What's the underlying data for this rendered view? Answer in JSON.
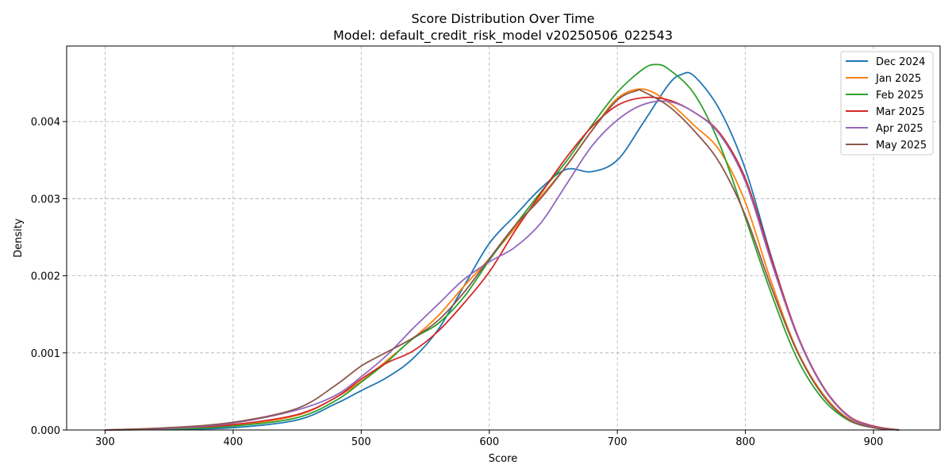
{
  "chart_data": {
    "type": "line",
    "title": "Score Distribution Over Time",
    "subtitle": "Model: default_credit_risk_model v20250506_022543",
    "xlabel": "Score",
    "ylabel": "Density",
    "xlim": [
      270,
      952
    ],
    "ylim": [
      0,
      0.00498
    ],
    "x_ticks": [
      300,
      400,
      500,
      600,
      700,
      800,
      900
    ],
    "y_ticks": [
      0.0,
      0.001,
      0.002,
      0.003,
      0.004
    ],
    "y_tick_labels": [
      "0.000",
      "0.001",
      "0.002",
      "0.003",
      "0.004"
    ],
    "grid": true,
    "legend_position": "top-right",
    "series": [
      {
        "name": "Dec 2024",
        "color": "#1f77b4",
        "points": [
          [
            300,
            0
          ],
          [
            350,
            1e-05
          ],
          [
            400,
            3e-05
          ],
          [
            450,
            0.00013
          ],
          [
            480,
            0.00034
          ],
          [
            500,
            0.00051
          ],
          [
            520,
            0.00068
          ],
          [
            540,
            0.00092
          ],
          [
            560,
            0.0013
          ],
          [
            580,
            0.00186
          ],
          [
            600,
            0.00242
          ],
          [
            620,
            0.00278
          ],
          [
            640,
            0.00313
          ],
          [
            660,
            0.00338
          ],
          [
            680,
            0.00335
          ],
          [
            700,
            0.0035
          ],
          [
            720,
            0.00398
          ],
          [
            740,
            0.00448
          ],
          [
            750,
            0.00461
          ],
          [
            760,
            0.00459
          ],
          [
            780,
            0.00415
          ],
          [
            800,
            0.00338
          ],
          [
            820,
            0.00226
          ],
          [
            840,
            0.00125
          ],
          [
            860,
            0.00058
          ],
          [
            880,
            0.00018
          ],
          [
            900,
            5e-05
          ],
          [
            920,
            0
          ]
        ]
      },
      {
        "name": "Jan 2025",
        "color": "#ff7f0e",
        "points": [
          [
            300,
            0
          ],
          [
            350,
            2e-05
          ],
          [
            400,
            6e-05
          ],
          [
            450,
            0.00019
          ],
          [
            480,
            0.00042
          ],
          [
            500,
            0.00063
          ],
          [
            520,
            0.0009
          ],
          [
            540,
            0.00118
          ],
          [
            560,
            0.00148
          ],
          [
            580,
            0.00186
          ],
          [
            600,
            0.00222
          ],
          [
            620,
            0.00262
          ],
          [
            640,
            0.00302
          ],
          [
            660,
            0.00342
          ],
          [
            680,
            0.00388
          ],
          [
            700,
            0.0043
          ],
          [
            720,
            0.00442
          ],
          [
            740,
            0.00425
          ],
          [
            760,
            0.00395
          ],
          [
            780,
            0.00362
          ],
          [
            800,
            0.00295
          ],
          [
            820,
            0.00193
          ],
          [
            840,
            0.00105
          ],
          [
            860,
            0.00048
          ],
          [
            880,
            0.00015
          ],
          [
            900,
            4e-05
          ],
          [
            920,
            0
          ]
        ]
      },
      {
        "name": "Feb 2025",
        "color": "#2ca02c",
        "points": [
          [
            300,
            0
          ],
          [
            350,
            1e-05
          ],
          [
            400,
            5e-05
          ],
          [
            450,
            0.00016
          ],
          [
            480,
            0.00038
          ],
          [
            500,
            0.00062
          ],
          [
            520,
            0.00088
          ],
          [
            540,
            0.00118
          ],
          [
            560,
            0.00138
          ],
          [
            580,
            0.00172
          ],
          [
            600,
            0.0022
          ],
          [
            620,
            0.00265
          ],
          [
            640,
            0.00308
          ],
          [
            660,
            0.00348
          ],
          [
            680,
            0.00395
          ],
          [
            700,
            0.00438
          ],
          [
            720,
            0.00468
          ],
          [
            730,
            0.00474
          ],
          [
            740,
            0.00468
          ],
          [
            760,
            0.00436
          ],
          [
            780,
            0.0037
          ],
          [
            800,
            0.00275
          ],
          [
            820,
            0.00178
          ],
          [
            840,
            0.00094
          ],
          [
            860,
            0.00041
          ],
          [
            880,
            0.00013
          ],
          [
            900,
            3e-05
          ],
          [
            920,
            0
          ]
        ]
      },
      {
        "name": "Mar 2025",
        "color": "#d62728",
        "points": [
          [
            300,
            0
          ],
          [
            350,
            2e-05
          ],
          [
            400,
            7e-05
          ],
          [
            450,
            0.0002
          ],
          [
            480,
            0.00042
          ],
          [
            500,
            0.00066
          ],
          [
            520,
            0.00087
          ],
          [
            540,
            0.00102
          ],
          [
            560,
            0.00128
          ],
          [
            580,
            0.00164
          ],
          [
            600,
            0.00205
          ],
          [
            620,
            0.00258
          ],
          [
            640,
            0.00306
          ],
          [
            660,
            0.00353
          ],
          [
            680,
            0.00393
          ],
          [
            700,
            0.00421
          ],
          [
            720,
            0.00431
          ],
          [
            740,
            0.00428
          ],
          [
            760,
            0.00412
          ],
          [
            780,
            0.00385
          ],
          [
            800,
            0.00326
          ],
          [
            820,
            0.00224
          ],
          [
            840,
            0.00126
          ],
          [
            860,
            0.00058
          ],
          [
            880,
            0.00019
          ],
          [
            900,
            5e-05
          ],
          [
            920,
            0
          ]
        ]
      },
      {
        "name": "Apr 2025",
        "color": "#9467bd",
        "points": [
          [
            300,
            0
          ],
          [
            350,
            2e-05
          ],
          [
            400,
            9e-05
          ],
          [
            450,
            0.00026
          ],
          [
            480,
            0.00045
          ],
          [
            500,
            0.00069
          ],
          [
            520,
            0.00097
          ],
          [
            540,
            0.00131
          ],
          [
            560,
            0.00163
          ],
          [
            580,
            0.00195
          ],
          [
            600,
            0.00218
          ],
          [
            620,
            0.00237
          ],
          [
            640,
            0.00268
          ],
          [
            660,
            0.00318
          ],
          [
            680,
            0.00368
          ],
          [
            700,
            0.00402
          ],
          [
            720,
            0.00422
          ],
          [
            740,
            0.00426
          ],
          [
            760,
            0.00412
          ],
          [
            780,
            0.00383
          ],
          [
            800,
            0.00322
          ],
          [
            820,
            0.00219
          ],
          [
            840,
            0.00124
          ],
          [
            860,
            0.00057
          ],
          [
            880,
            0.00018
          ],
          [
            900,
            4e-05
          ],
          [
            920,
            0
          ]
        ]
      },
      {
        "name": "May 2025",
        "color": "#8c564b",
        "points": [
          [
            300,
            0
          ],
          [
            350,
            3e-05
          ],
          [
            400,
            0.0001
          ],
          [
            450,
            0.00028
          ],
          [
            480,
            0.00058
          ],
          [
            500,
            0.00083
          ],
          [
            520,
            0.00101
          ],
          [
            540,
            0.00119
          ],
          [
            560,
            0.00142
          ],
          [
            580,
            0.00178
          ],
          [
            600,
            0.00222
          ],
          [
            620,
            0.00265
          ],
          [
            640,
            0.003
          ],
          [
            660,
            0.00342
          ],
          [
            680,
            0.00388
          ],
          [
            700,
            0.00428
          ],
          [
            715,
            0.0044
          ],
          [
            720,
            0.00439
          ],
          [
            740,
            0.0042
          ],
          [
            760,
            0.00388
          ],
          [
            780,
            0.00346
          ],
          [
            800,
            0.00278
          ],
          [
            820,
            0.00186
          ],
          [
            840,
            0.00103
          ],
          [
            860,
            0.00046
          ],
          [
            880,
            0.00014
          ],
          [
            900,
            3e-05
          ],
          [
            920,
            0
          ]
        ]
      }
    ]
  }
}
